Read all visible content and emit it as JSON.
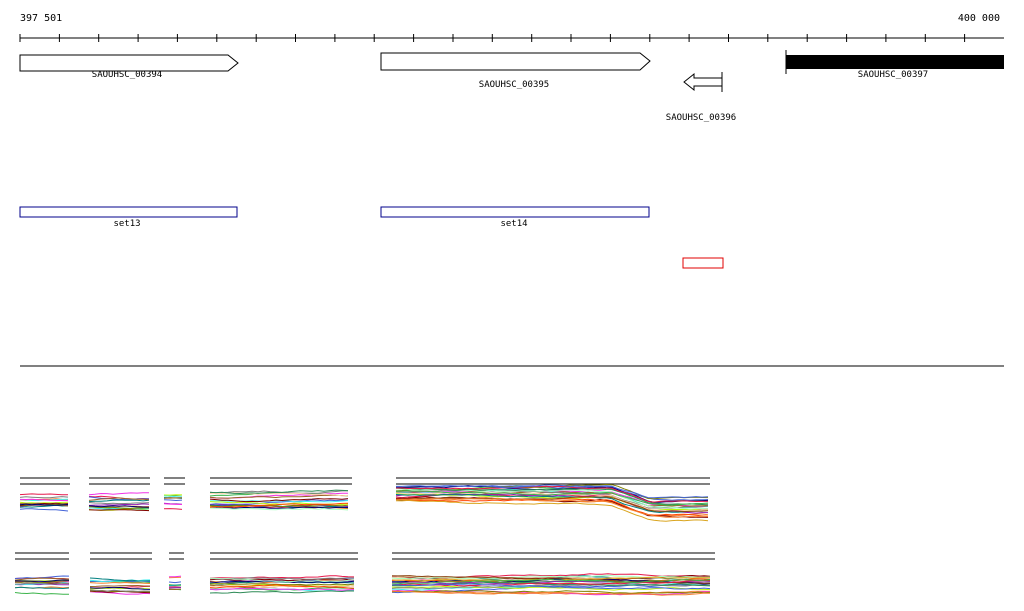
{
  "ruler": {
    "start_label": "397 501",
    "end_label": "400 000"
  },
  "genes": [
    {
      "id": "SAOUHSC_00394",
      "label": "SAOUHSC_00394",
      "strand": "forward",
      "style": "outline"
    },
    {
      "id": "SAOUHSC_00395",
      "label": "SAOUHSC_00395",
      "strand": "forward",
      "style": "outline"
    },
    {
      "id": "SAOUHSC_00396",
      "label": "SAOUHSC_00396",
      "strand": "reverse",
      "style": "outline"
    },
    {
      "id": "SAOUHSC_00397",
      "label": "SAOUHSC_00397",
      "strand": "forward",
      "style": "filled"
    }
  ],
  "sets": [
    {
      "id": "set13",
      "label": "set13",
      "color": "#00008b"
    },
    {
      "id": "set14",
      "label": "set14",
      "color": "#00008b"
    },
    {
      "id": "unnamed-red",
      "label": "",
      "color": "#e00000"
    }
  ],
  "colors": {
    "ink": "#000000",
    "set_outline": "#00008b",
    "highlight": "#e00000",
    "trace_palette": [
      "#e6194b",
      "#3cb44b",
      "#4363d8",
      "#f58231",
      "#911eb4",
      "#46f0f0",
      "#f032e6",
      "#bcf60c",
      "#008080",
      "#9a6324",
      "#800000",
      "#808000",
      "#000075",
      "#808080",
      "#ffd8b1",
      "#aaffc3",
      "#ff4500",
      "#2e8b57",
      "#8b4513",
      "#daa520"
    ]
  }
}
